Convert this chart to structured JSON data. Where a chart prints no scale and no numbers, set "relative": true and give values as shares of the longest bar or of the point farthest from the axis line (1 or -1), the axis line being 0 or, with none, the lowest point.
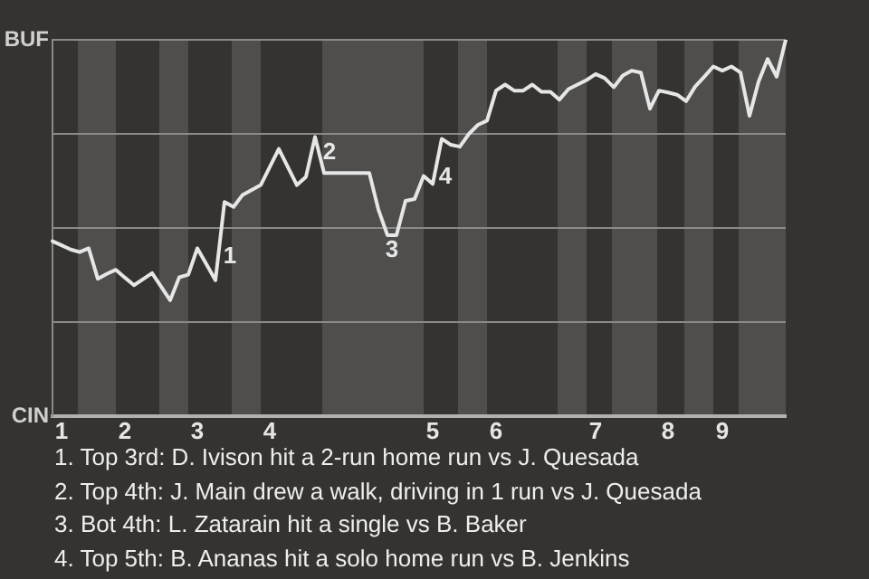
{
  "chart_data": {
    "type": "line",
    "relative": true,
    "categories": [
      null,
      "1",
      null,
      null,
      null,
      null,
      null,
      null,
      "2",
      null,
      null,
      null,
      null,
      null,
      null,
      null,
      "3",
      null,
      null,
      null,
      null,
      null,
      null,
      null,
      "4",
      null,
      null,
      null,
      null,
      null,
      null,
      null,
      null,
      null,
      null,
      null,
      null,
      null,
      null,
      null,
      null,
      null,
      "5",
      null,
      null,
      null,
      null,
      null,
      null,
      "6",
      null,
      null,
      null,
      null,
      null,
      null,
      null,
      null,
      null,
      null,
      "7",
      null,
      null,
      null,
      null,
      null,
      null,
      null,
      "8",
      null,
      null,
      null,
      null,
      null,
      "9",
      null,
      null,
      null,
      null,
      null,
      null,
      null
    ],
    "series": [
      {
        "color": "#e6e6e6",
        "values": [
          0.465,
          0.454,
          0.443,
          0.436,
          0.446,
          0.365,
          0.378,
          0.389,
          0.368,
          0.348,
          0.364,
          0.38,
          0.344,
          0.308,
          0.369,
          0.376,
          0.446,
          0.404,
          0.361,
          0.569,
          0.556,
          0.588,
          0.601,
          0.614,
          0.662,
          0.71,
          0.662,
          0.614,
          0.636,
          0.742,
          0.646,
          0.646,
          0.646,
          0.646,
          0.646,
          0.646,
          0.549,
          0.481,
          0.481,
          0.572,
          0.577,
          0.638,
          0.617,
          0.737,
          0.721,
          0.716,
          0.75,
          0.774,
          0.785,
          0.865,
          0.881,
          0.865,
          0.865,
          0.881,
          0.862,
          0.862,
          0.841,
          0.869,
          0.881,
          0.893,
          0.909,
          0.898,
          0.874,
          0.905,
          0.918,
          0.913,
          0.817,
          0.865,
          0.86,
          0.854,
          0.837,
          0.876,
          0.902,
          0.929,
          0.918,
          0.929,
          0.913,
          0.798,
          0.889,
          0.949,
          0.902,
          1
        ]
      }
    ],
    "grid": "y",
    "legend": false,
    "marker": "none",
    "line_style": "solid",
    "annotations": [
      "BUF",
      "CIN",
      "1",
      "2",
      "3",
      "4",
      "1. Top 3rd: D. Ivison hit a 2-run home run vs J. Quesada",
      "2. Top 4th: J. Main drew a walk, driving in 1 run vs J. Quesada",
      "3. Bot 4th: L. Zatarain hit a single vs B. Baker",
      "4. Top 5th: B. Ananas hit a solo home run vs B. Jenkins"
    ]
  }
}
